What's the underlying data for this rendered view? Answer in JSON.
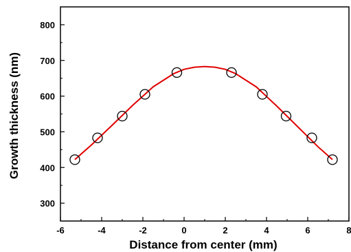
{
  "chart_data": {
    "type": "scatter",
    "xlabel": "Distance from center (mm)",
    "ylabel": "Growth thickness (nm)",
    "xlim": [
      -6,
      8
    ],
    "ylim": [
      250,
      850
    ],
    "x_ticks": [
      -6,
      -4,
      -2,
      0,
      2,
      4,
      6,
      8
    ],
    "y_ticks": [
      300,
      400,
      500,
      600,
      700,
      800
    ],
    "grid": false,
    "series": [
      {
        "kind": "points",
        "marker": "open-circle",
        "color": "#000000",
        "x": [
          -5.3,
          -4.2,
          -3.0,
          -1.9,
          -0.35,
          2.3,
          3.8,
          4.95,
          6.2,
          7.2
        ],
        "y": [
          422,
          483,
          544,
          605,
          666,
          666,
          605,
          544,
          483,
          422
        ]
      },
      {
        "kind": "fit-line",
        "color": "#e00000",
        "x": [
          -5.3,
          -4.5,
          -3.5,
          -2.5,
          -1.5,
          -0.5,
          0.0,
          0.5,
          1.0,
          1.5,
          2.0,
          2.5,
          3.5,
          4.5,
          5.5,
          6.5,
          7.2
        ],
        "y": [
          422,
          463,
          518,
          574,
          626,
          663,
          675,
          681,
          683,
          681,
          675,
          663,
          626,
          572,
          515,
          458,
          422
        ]
      }
    ]
  }
}
